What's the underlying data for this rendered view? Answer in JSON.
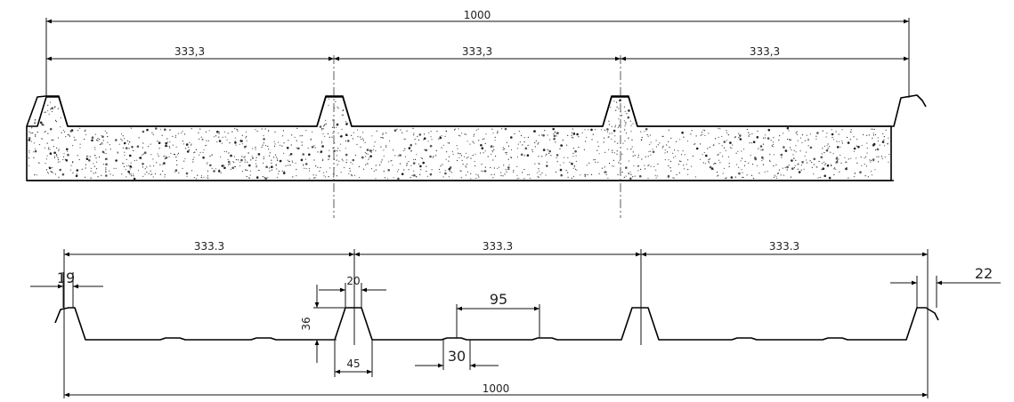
{
  "top_section": {
    "overall_width": "1000",
    "rib_spacing_1": "333,3",
    "rib_spacing_2": "333,3",
    "rib_spacing_3": "333,3"
  },
  "bottom_section": {
    "rib_spacing_1": "333.3",
    "rib_spacing_2": "333.3",
    "rib_spacing_3": "333.3",
    "overall_width": "1000",
    "left_edge_rib_top": "19",
    "rib_top_width": "20",
    "rib_height": "36",
    "rib_base_width": "45",
    "stiffener_spacing": "95",
    "stiffener_width": "30",
    "right_edge_rib_top": "22"
  }
}
